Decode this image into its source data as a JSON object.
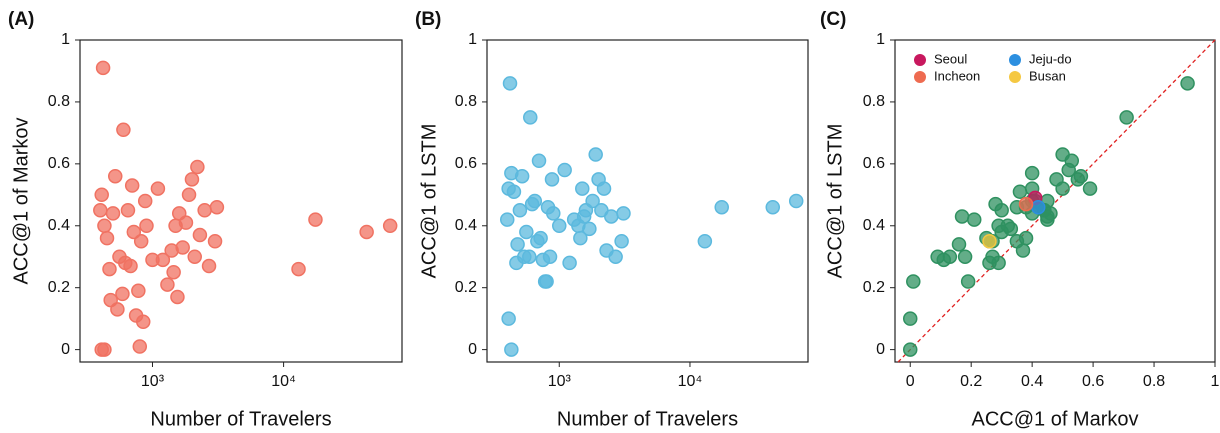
{
  "chart_data": [
    {
      "type": "scatter",
      "panel_label": "(A)",
      "xlabel": "Number of Travelers",
      "ylabel": "ACC@1 of Markov",
      "log_x": true,
      "xlim": [
        280,
        80000
      ],
      "ylim": [
        -0.04,
        1.0
      ],
      "xticks": [
        {
          "value": 1000,
          "label": "10³"
        },
        {
          "value": 10000,
          "label": "10⁴"
        }
      ],
      "yticks": [
        0,
        0.2,
        0.4,
        0.6,
        0.8,
        1
      ],
      "color": "#f07262",
      "x": [
        420,
        430,
        410,
        400,
        410,
        430,
        450,
        470,
        480,
        500,
        520,
        540,
        560,
        590,
        600,
        620,
        650,
        680,
        700,
        720,
        750,
        780,
        800,
        820,
        850,
        880,
        900,
        1000,
        1100,
        1200,
        1300,
        1400,
        1450,
        1500,
        1550,
        1600,
        1700,
        1800,
        1900,
        2000,
        2100,
        2200,
        2300,
        2500,
        2700,
        3000,
        3100,
        13000,
        17500,
        43000,
        65000
      ],
      "y": [
        0.91,
        0.0,
        0.0,
        0.45,
        0.5,
        0.4,
        0.36,
        0.26,
        0.16,
        0.44,
        0.56,
        0.13,
        0.3,
        0.18,
        0.71,
        0.28,
        0.45,
        0.27,
        0.53,
        0.38,
        0.11,
        0.19,
        0.01,
        0.35,
        0.09,
        0.48,
        0.4,
        0.29,
        0.52,
        0.29,
        0.21,
        0.32,
        0.25,
        0.4,
        0.17,
        0.44,
        0.33,
        0.41,
        0.5,
        0.55,
        0.3,
        0.59,
        0.37,
        0.45,
        0.27,
        0.35,
        0.46,
        0.26,
        0.42,
        0.38,
        0.4
      ]
    },
    {
      "type": "scatter",
      "panel_label": "(B)",
      "xlabel": "Number of Travelers",
      "ylabel": "ACC@1 of LSTM",
      "log_x": true,
      "xlim": [
        280,
        80000
      ],
      "ylim": [
        -0.04,
        1.0
      ],
      "xticks": [
        {
          "value": 1000,
          "label": "10³"
        },
        {
          "value": 10000,
          "label": "10⁴"
        }
      ],
      "yticks": [
        0,
        0.2,
        0.4,
        0.6,
        0.8,
        1
      ],
      "color": "#5cb9de",
      "x": [
        420,
        430,
        410,
        400,
        410,
        430,
        450,
        470,
        480,
        500,
        520,
        540,
        560,
        590,
        600,
        620,
        650,
        680,
        700,
        720,
        750,
        780,
        800,
        820,
        850,
        880,
        900,
        1000,
        1100,
        1200,
        1300,
        1400,
        1450,
        1500,
        1550,
        1600,
        1700,
        1800,
        1900,
        2000,
        2100,
        2200,
        2300,
        2500,
        2700,
        3000,
        3100,
        13000,
        17500,
        43000,
        65000
      ],
      "y": [
        0.86,
        0.0,
        0.1,
        0.42,
        0.52,
        0.57,
        0.51,
        0.28,
        0.34,
        0.45,
        0.56,
        0.3,
        0.38,
        0.3,
        0.75,
        0.47,
        0.48,
        0.35,
        0.61,
        0.36,
        0.29,
        0.22,
        0.22,
        0.46,
        0.3,
        0.55,
        0.44,
        0.4,
        0.58,
        0.28,
        0.42,
        0.4,
        0.36,
        0.52,
        0.43,
        0.45,
        0.39,
        0.48,
        0.63,
        0.55,
        0.45,
        0.52,
        0.32,
        0.43,
        0.3,
        0.35,
        0.44,
        0.35,
        0.46,
        0.46,
        0.48
      ]
    },
    {
      "type": "scatter",
      "panel_label": "(C)",
      "xlabel": "ACC@1 of Markov",
      "ylabel": "ACC@1 of LSTM",
      "log_x": false,
      "xlim": [
        -0.05,
        1.0
      ],
      "ylim": [
        -0.04,
        1.0
      ],
      "xticks": [
        0,
        0.2,
        0.4,
        0.6,
        0.8,
        1
      ],
      "yticks": [
        0,
        0.2,
        0.4,
        0.6,
        0.8,
        1
      ],
      "identity_line": true,
      "legend": "upper left",
      "color": "#2f9160",
      "x": [
        0.91,
        0.0,
        0.0,
        0.45,
        0.5,
        0.4,
        0.36,
        0.26,
        0.16,
        0.44,
        0.56,
        0.13,
        0.3,
        0.18,
        0.71,
        0.28,
        0.45,
        0.27,
        0.53,
        0.38,
        0.11,
        0.19,
        0.01,
        0.35,
        0.09,
        0.48,
        0.4,
        0.29,
        0.52,
        0.29,
        0.21,
        0.32,
        0.25,
        0.4,
        0.17,
        0.44,
        0.33,
        0.41,
        0.5,
        0.55,
        0.3,
        0.59,
        0.37,
        0.45,
        0.27,
        0.35,
        0.46,
        0.26,
        0.42,
        0.38,
        0.4
      ],
      "y": [
        0.86,
        0.0,
        0.1,
        0.42,
        0.52,
        0.57,
        0.51,
        0.28,
        0.34,
        0.45,
        0.56,
        0.3,
        0.38,
        0.3,
        0.75,
        0.47,
        0.48,
        0.35,
        0.61,
        0.36,
        0.29,
        0.22,
        0.22,
        0.46,
        0.3,
        0.55,
        0.44,
        0.4,
        0.58,
        0.28,
        0.42,
        0.4,
        0.36,
        0.52,
        0.43,
        0.45,
        0.39,
        0.48,
        0.63,
        0.55,
        0.45,
        0.52,
        0.32,
        0.43,
        0.3,
        0.35,
        0.44,
        0.35,
        0.46,
        0.46,
        0.48
      ],
      "series": [
        {
          "name": "Seoul",
          "color": "#c8185e",
          "x": [
            0.41
          ],
          "y": [
            0.49
          ]
        },
        {
          "name": "Jeju-do",
          "color": "#2c8fe0",
          "x": [
            0.42
          ],
          "y": [
            0.46
          ]
        },
        {
          "name": "Incheon",
          "color": "#ee6b50",
          "x": [
            0.38
          ],
          "y": [
            0.47
          ]
        },
        {
          "name": "Busan",
          "color": "#f5c842",
          "x": [
            0.26
          ],
          "y": [
            0.35
          ]
        }
      ]
    }
  ]
}
